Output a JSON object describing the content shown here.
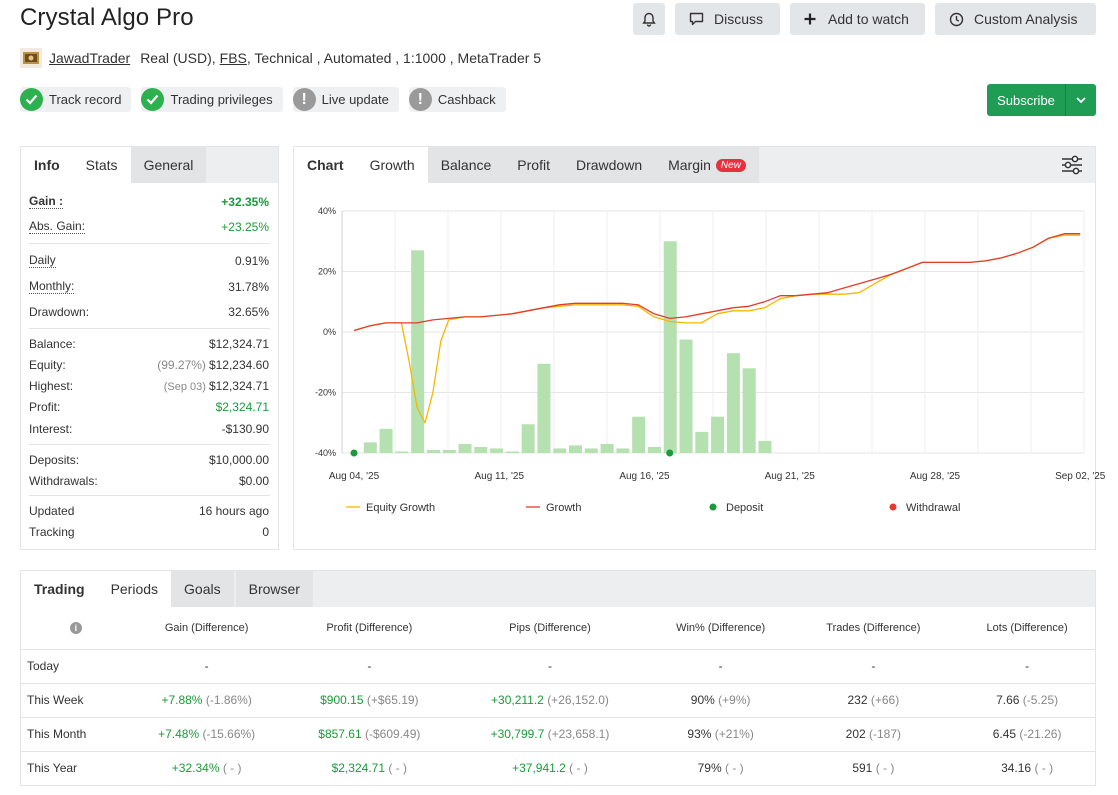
{
  "header": {
    "title": "Crystal Algo Pro",
    "discuss_label": "Discuss",
    "watch_label": "Add to watch",
    "custom_label": "Custom Analysis"
  },
  "meta": {
    "author": "JawadTrader",
    "account": "Real (USD),",
    "broker": "FBS",
    "details": ", Technical , Automated , 1:1000 , MetaTrader 5"
  },
  "badges": [
    {
      "label": "Track record",
      "status": "ok"
    },
    {
      "label": "Trading privileges",
      "status": "ok"
    },
    {
      "label": "Live update",
      "status": "warn"
    },
    {
      "label": "Cashback",
      "status": "warn"
    }
  ],
  "subscribe": {
    "label": "Subscribe"
  },
  "stats_tabs": {
    "lead": "Info",
    "active": "Stats",
    "other": "General"
  },
  "stats": {
    "gain": {
      "label": "Gain :",
      "value": "+32.35%"
    },
    "abs_gain": {
      "label": "Abs. Gain:",
      "value": "+23.25%"
    },
    "daily": {
      "label": "Daily",
      "value": "0.91%"
    },
    "monthly": {
      "label": "Monthly:",
      "value": "31.78%"
    },
    "drawdown": {
      "label": "Drawdown:",
      "value": "32.65%"
    },
    "balance": {
      "label": "Balance:",
      "value": "$12,324.71"
    },
    "equity": {
      "label": "Equity:",
      "pre": "(99.27%)",
      "value": "$12,234.60"
    },
    "highest": {
      "label": "Highest:",
      "pre": "(Sep 03)",
      "value": "$12,324.71"
    },
    "profit": {
      "label": "Profit:",
      "value": "$2,324.71"
    },
    "interest": {
      "label": "Interest:",
      "value": "-$130.90"
    },
    "deposits": {
      "label": "Deposits:",
      "value": "$10,000.00"
    },
    "withdrawals": {
      "label": "Withdrawals:",
      "value": "$0.00"
    },
    "updated": {
      "label": "Updated",
      "value": "16 hours ago"
    },
    "tracking": {
      "label": "Tracking",
      "value": "0"
    }
  },
  "chart_tabs": {
    "lead": "Chart",
    "items": [
      "Growth",
      "Balance",
      "Profit",
      "Drawdown",
      "Margin"
    ],
    "new_tag": "New"
  },
  "chart_data": {
    "type": "line",
    "yticks": [
      "40%",
      "20%",
      "0%",
      "-20%",
      "-40%"
    ],
    "ylim": [
      -40,
      40
    ],
    "xticks": [
      "Aug 04, '25",
      "Aug 11, '25",
      "Aug 16, '25",
      "Aug 21, '25",
      "Aug 28, '25",
      "Sep 02, '25"
    ],
    "legend": [
      "Equity Growth",
      "Growth",
      "Deposit",
      "Withdrawal"
    ],
    "colors": {
      "equity": "#f5b800",
      "growth": "#e53b2c",
      "deposit": "#1a9b3a",
      "withdrawal": "#e53b2c",
      "bar": "#b5e0b0"
    },
    "growth": [
      [
        0,
        0.5
      ],
      [
        2,
        2
      ],
      [
        4,
        3
      ],
      [
        6,
        3
      ],
      [
        8,
        3
      ],
      [
        10,
        4
      ],
      [
        12,
        4.5
      ],
      [
        14,
        5
      ],
      [
        16,
        5
      ],
      [
        18,
        5.5
      ],
      [
        20,
        6
      ],
      [
        22,
        7
      ],
      [
        24,
        8
      ],
      [
        26,
        9
      ],
      [
        28,
        9.5
      ],
      [
        30,
        9.5
      ],
      [
        32,
        9.5
      ],
      [
        34,
        9.5
      ],
      [
        36,
        9
      ],
      [
        38,
        6
      ],
      [
        40,
        4.5
      ],
      [
        42,
        5
      ],
      [
        44,
        6
      ],
      [
        46,
        7
      ],
      [
        48,
        8
      ],
      [
        50,
        8.5
      ],
      [
        52,
        10
      ],
      [
        54,
        12
      ],
      [
        56,
        12
      ],
      [
        58,
        12.5
      ],
      [
        60,
        13
      ],
      [
        62,
        14.5
      ],
      [
        64,
        16
      ],
      [
        66,
        17.5
      ],
      [
        68,
        19
      ],
      [
        70,
        21
      ],
      [
        72,
        23
      ],
      [
        74,
        23
      ],
      [
        76,
        23
      ],
      [
        78,
        23
      ],
      [
        80,
        23.5
      ],
      [
        82,
        24.5
      ],
      [
        84,
        26
      ],
      [
        86,
        28
      ],
      [
        88,
        31
      ],
      [
        90,
        32.5
      ],
      [
        92,
        32.5
      ]
    ],
    "equity": [
      [
        0,
        0.5
      ],
      [
        2,
        2
      ],
      [
        4,
        3
      ],
      [
        6,
        3
      ],
      [
        7,
        -10
      ],
      [
        8,
        -25
      ],
      [
        9,
        -30
      ],
      [
        10,
        -20
      ],
      [
        11,
        -3
      ],
      [
        12,
        4
      ],
      [
        14,
        5
      ],
      [
        16,
        5
      ],
      [
        18,
        5.5
      ],
      [
        20,
        6
      ],
      [
        22,
        7
      ],
      [
        24,
        8
      ],
      [
        26,
        8.5
      ],
      [
        28,
        9
      ],
      [
        30,
        9
      ],
      [
        32,
        9
      ],
      [
        34,
        9
      ],
      [
        36,
        8.5
      ],
      [
        38,
        5
      ],
      [
        40,
        3.5
      ],
      [
        42,
        3
      ],
      [
        44,
        3
      ],
      [
        46,
        6
      ],
      [
        48,
        7
      ],
      [
        50,
        7
      ],
      [
        52,
        8
      ],
      [
        54,
        11
      ],
      [
        56,
        12
      ],
      [
        58,
        12.5
      ],
      [
        60,
        12.5
      ],
      [
        62,
        12.5
      ],
      [
        64,
        13
      ],
      [
        66,
        16
      ],
      [
        68,
        19
      ],
      [
        70,
        21
      ],
      [
        72,
        23
      ],
      [
        74,
        23
      ],
      [
        76,
        23
      ],
      [
        78,
        23
      ],
      [
        80,
        23.5
      ],
      [
        82,
        24.5
      ],
      [
        84,
        26
      ],
      [
        86,
        28
      ],
      [
        88,
        31
      ],
      [
        90,
        32
      ],
      [
        92,
        32
      ]
    ],
    "bars": [
      [
        2,
        -36.5
      ],
      [
        4,
        -32
      ],
      [
        6,
        -39.5
      ],
      [
        8,
        27
      ],
      [
        10,
        -39
      ],
      [
        12,
        -39
      ],
      [
        14,
        -37
      ],
      [
        16,
        -38
      ],
      [
        18,
        -38.5
      ],
      [
        20,
        -39.5
      ],
      [
        22,
        -30.5
      ],
      [
        24,
        -10.5
      ],
      [
        26,
        -38.5
      ],
      [
        28,
        -37.5
      ],
      [
        30,
        -38.5
      ],
      [
        32,
        -37
      ],
      [
        34,
        -38.5
      ],
      [
        36,
        -28
      ],
      [
        38,
        -38
      ],
      [
        40,
        30
      ],
      [
        42,
        -2.5
      ],
      [
        44,
        -33
      ],
      [
        46,
        -28
      ],
      [
        48,
        -7
      ],
      [
        50,
        -12
      ],
      [
        52,
        -36
      ]
    ],
    "deposits": [
      [
        0,
        -40
      ],
      [
        40,
        -40
      ]
    ]
  },
  "periods_tabs": {
    "lead": "Trading",
    "active": "Periods",
    "others": [
      "Goals",
      "Browser"
    ]
  },
  "periods": {
    "headers": [
      "Gain (Difference)",
      "Profit (Difference)",
      "Pips (Difference)",
      "Win% (Difference)",
      "Trades (Difference)",
      "Lots (Difference)"
    ],
    "rows": [
      {
        "label": "Today",
        "gain": "-",
        "gain_d": "",
        "profit": "-",
        "profit_d": "",
        "pips": "-",
        "pips_d": "",
        "win": "-",
        "win_d": "",
        "trades": "-",
        "trades_d": "",
        "lots": "-",
        "lots_d": ""
      },
      {
        "label": "This Week",
        "gain": "+7.88%",
        "gain_d": "(-1.86%)",
        "profit": "$900.15",
        "profit_d": "(+$65.19)",
        "pips": "+30,211.2",
        "pips_d": "(+26,152.0)",
        "win": "90%",
        "win_d": "(+9%)",
        "trades": "232",
        "trades_d": "(+66)",
        "lots": "7.66",
        "lots_d": "(-5.25)"
      },
      {
        "label": "This Month",
        "gain": "+7.48%",
        "gain_d": "(-15.66%)",
        "profit": "$857.61",
        "profit_d": "(-$609.49)",
        "pips": "+30,799.7",
        "pips_d": "(+23,658.1)",
        "win": "93%",
        "win_d": "(+21%)",
        "trades": "202",
        "trades_d": "(-187)",
        "lots": "6.45",
        "lots_d": "(-21.26)"
      },
      {
        "label": "This Year",
        "gain": "+32.34%",
        "gain_d": "( - )",
        "profit": "$2,324.71",
        "profit_d": "( - )",
        "pips": "+37,941.2",
        "pips_d": "( - )",
        "win": "79%",
        "win_d": "( - )",
        "trades": "591",
        "trades_d": "( - )",
        "lots": "34.16",
        "lots_d": "( - )"
      }
    ]
  }
}
